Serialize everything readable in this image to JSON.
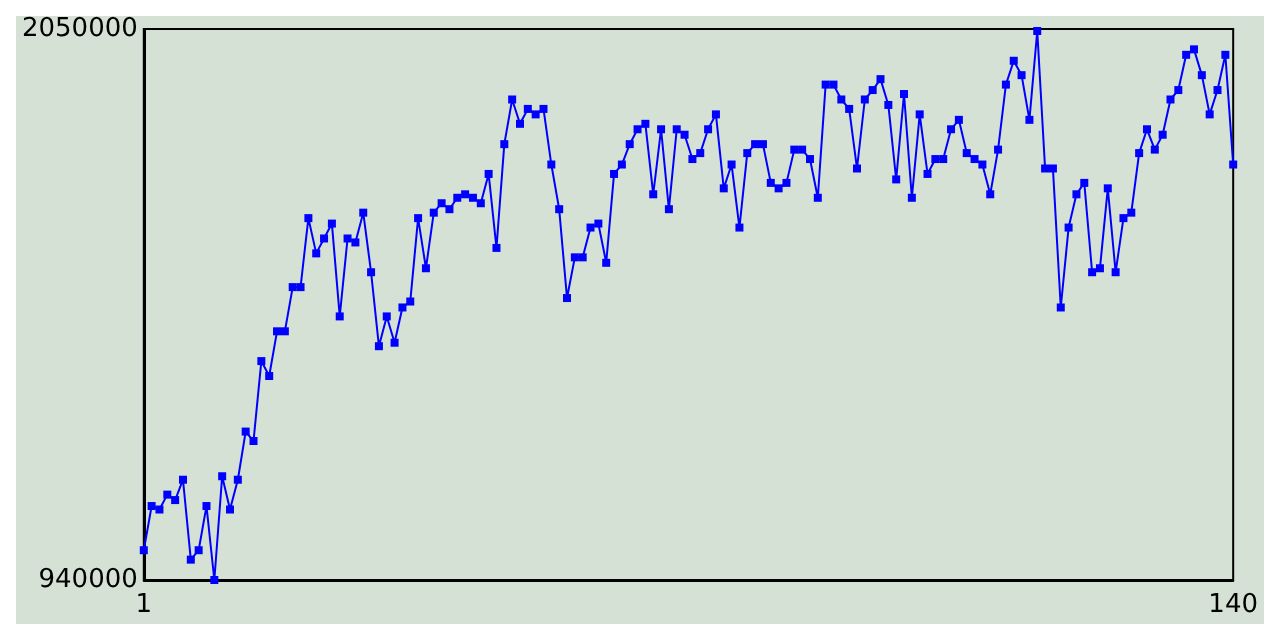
{
  "chart_data": {
    "type": "line",
    "x": [
      1,
      2,
      3,
      4,
      5,
      6,
      7,
      8,
      9,
      10,
      11,
      12,
      13,
      14,
      15,
      16,
      17,
      18,
      19,
      20,
      21,
      22,
      23,
      24,
      25,
      26,
      27,
      28,
      29,
      30,
      31,
      32,
      33,
      34,
      35,
      36,
      37,
      38,
      39,
      40,
      41,
      42,
      43,
      44,
      45,
      46,
      47,
      48,
      49,
      50,
      51,
      52,
      53,
      54,
      55,
      56,
      57,
      58,
      59,
      60,
      61,
      62,
      63,
      64,
      65,
      66,
      67,
      68,
      69,
      70,
      71,
      72,
      73,
      74,
      75,
      76,
      77,
      78,
      79,
      80,
      81,
      82,
      83,
      84,
      85,
      86,
      87,
      88,
      89,
      90,
      91,
      92,
      93,
      94,
      95,
      96,
      97,
      98,
      99,
      100,
      101,
      102,
      103,
      104,
      105,
      106,
      107,
      108,
      109,
      110,
      111,
      112,
      113,
      114,
      115,
      116,
      117,
      118,
      119,
      120,
      121,
      122,
      123,
      124,
      125,
      126,
      127,
      128,
      129,
      130,
      131,
      132,
      133,
      134,
      135,
      136,
      137,
      138,
      139,
      140
    ],
    "series": [
      {
        "color": "#0000ff",
        "values": [
          1000000,
          1089000,
          1082000,
          1112000,
          1101000,
          1142000,
          981000,
          1000000,
          1089000,
          940000,
          1149000,
          1082000,
          1142000,
          1239000,
          1220000,
          1381000,
          1351000,
          1441000,
          1441000,
          1530000,
          1530000,
          1669000,
          1598000,
          1628000,
          1658000,
          1471000,
          1628000,
          1620000,
          1680000,
          1560000,
          1411000,
          1471000,
          1418000,
          1489000,
          1501000,
          1669000,
          1568000,
          1680000,
          1699000,
          1687000,
          1710000,
          1717000,
          1710000,
          1699000,
          1758000,
          1609000,
          1818000,
          1908000,
          1859000,
          1889000,
          1878000,
          1889000,
          1777000,
          1687000,
          1508000,
          1590000,
          1590000,
          1650000,
          1658000,
          1579000,
          1758000,
          1777000,
          1818000,
          1848000,
          1859000,
          1717000,
          1848000,
          1687000,
          1848000,
          1837000,
          1788000,
          1800000,
          1848000,
          1878000,
          1729000,
          1777000,
          1650000,
          1800000,
          1818000,
          1818000,
          1740000,
          1729000,
          1740000,
          1807000,
          1807000,
          1788000,
          1710000,
          1938000,
          1938000,
          1908000,
          1889000,
          1769000,
          1908000,
          1927000,
          1949000,
          1897000,
          1747000,
          1919000,
          1710000,
          1878000,
          1758000,
          1788000,
          1788000,
          1848000,
          1867000,
          1800000,
          1788000,
          1777000,
          1717000,
          1807000,
          1938000,
          1986000,
          1957000,
          1867000,
          2046000,
          1769000,
          1769000,
          1489000,
          1650000,
          1717000,
          1740000,
          1560000,
          1568000,
          1729000,
          1560000,
          1669000,
          1680000,
          1800000,
          1848000,
          1807000,
          1837000,
          1908000,
          1927000,
          1998000,
          2009000,
          1957000,
          1878000,
          1927000,
          1998000,
          1777000
        ]
      }
    ],
    "xlim": [
      1,
      140
    ],
    "xticks": [
      1,
      140
    ],
    "ylim": [
      940000,
      2050000
    ],
    "yticks": [
      940000,
      2050000
    ],
    "grid": false,
    "marker": "square",
    "line_style": "solid"
  }
}
